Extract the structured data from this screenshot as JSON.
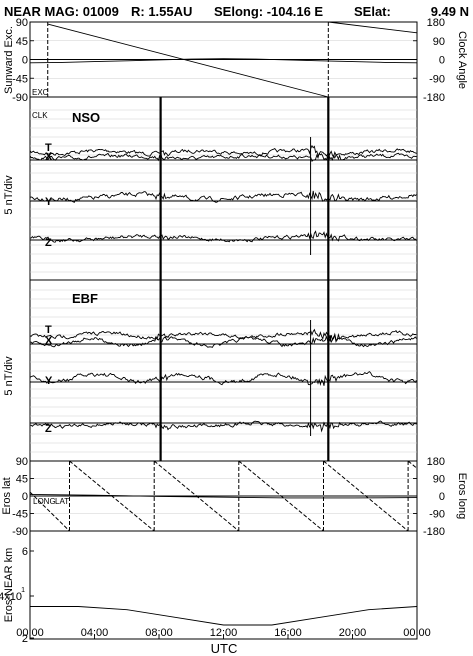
{
  "header": {
    "title": "NEAR MAG: 01009",
    "range": "R: 1.55AU",
    "selong": "SElong: -104.16 E",
    "selat": "SElat:",
    "selat_value": "9.49 N"
  },
  "chart_data": [
    {
      "type": "line",
      "panel": "sunward",
      "ylabel": "Sunward Exc.",
      "y2label": "Clock Angle",
      "ylim": [
        -90,
        90
      ],
      "y2lim": [
        -180,
        180
      ],
      "yticks": [
        "90",
        "45",
        "0",
        "-45",
        "-90"
      ],
      "y2ticks": [
        "180",
        "90",
        "0",
        "-90",
        "-180"
      ],
      "inner_labels": [
        "EXC",
        "CLK"
      ],
      "series": [
        {
          "name": "EXC",
          "axis": "left",
          "x_hours": [
            0,
            2,
            4,
            6,
            8,
            10,
            12,
            14,
            16,
            18,
            20,
            22,
            24
          ],
          "values": [
            -8,
            -7,
            -5,
            -3,
            -1,
            1,
            2,
            1,
            -1,
            -3,
            -5,
            -7,
            -8
          ]
        },
        {
          "name": "CLK",
          "axis": "right",
          "x_hours": [
            1.1,
            18.5,
            18.5,
            24
          ],
          "values": [
            170,
            -180,
            180,
            128
          ]
        }
      ],
      "dashed_verticals_hours": [
        1.1,
        18.5
      ]
    },
    {
      "type": "line",
      "panel": "NSO",
      "panel_label": "NSO",
      "ylabel": "5 nT/div",
      "component_labels": [
        "T",
        "X",
        "Y",
        "Z"
      ],
      "spikes_hours": [
        8.1,
        18.5
      ],
      "thin_spikes_hours": [
        17.4
      ]
    },
    {
      "type": "line",
      "panel": "EBF",
      "panel_label": "EBF",
      "ylabel": "5 nT/div",
      "component_labels": [
        "T",
        "X",
        "Y",
        "Z"
      ],
      "spikes_hours": [
        8.1,
        18.5
      ],
      "thin_spikes_hours": [
        17.4
      ]
    },
    {
      "type": "line",
      "panel": "eros",
      "ylabel": "Eros lat",
      "y2label": "Eros long",
      "ylim": [
        -90,
        90
      ],
      "y2lim": [
        -180,
        180
      ],
      "yticks": [
        "90",
        "45",
        "0",
        "-45",
        "-90"
      ],
      "y2ticks": [
        "180",
        "90",
        "0",
        "-90",
        "-180"
      ],
      "inner_labels": [
        "LONG",
        "LAT"
      ],
      "series": [
        {
          "name": "LAT",
          "axis": "left",
          "x_hours": [
            0,
            4,
            8,
            12,
            16,
            20,
            24
          ],
          "values": [
            4,
            2,
            -1,
            -3,
            -5,
            -5,
            -4
          ]
        },
        {
          "name": "LONG",
          "axis": "right",
          "period_hours": 5.25,
          "first_reset_hour": 2.45,
          "values_range": [
            -180,
            180
          ]
        }
      ]
    },
    {
      "type": "line",
      "panel": "distance",
      "ylabel": "Eros-NEAR km",
      "yticks": [
        "6",
        "4x10",
        "2"
      ],
      "ytick_exponent": "1",
      "series": [
        {
          "name": "Eros-NEAR km",
          "x_hours": [
            0,
            3,
            6,
            9,
            12,
            15,
            18,
            21,
            24
          ],
          "values": [
            3.45,
            3.45,
            3.3,
            2.95,
            2.6,
            2.6,
            2.95,
            3.3,
            3.45
          ]
        }
      ]
    }
  ],
  "xaxis": {
    "label": "UTC",
    "ticks": [
      "00:00",
      "04:00",
      "08:00",
      "12:00",
      "16:00",
      "20:00",
      "00:00"
    ],
    "range_hours": [
      0,
      24
    ]
  }
}
